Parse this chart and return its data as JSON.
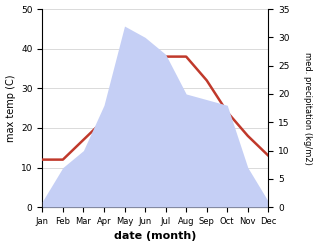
{
  "months": [
    "Jan",
    "Feb",
    "Mar",
    "Apr",
    "May",
    "Jun",
    "Jul",
    "Aug",
    "Sep",
    "Oct",
    "Nov",
    "Dec"
  ],
  "temperature": [
    12,
    12,
    17,
    22,
    28,
    34,
    38,
    38,
    32,
    24,
    18,
    13
  ],
  "precipitation": [
    1,
    7,
    10,
    18,
    32,
    30,
    27,
    20,
    19,
    18,
    7,
    1
  ],
  "temp_ylim": [
    0,
    50
  ],
  "precip_ylim": [
    0,
    35
  ],
  "temp_yticks": [
    0,
    10,
    20,
    30,
    40,
    50
  ],
  "precip_yticks": [
    0,
    5,
    10,
    15,
    20,
    25,
    30,
    35
  ],
  "temp_color": "#c0392b",
  "precip_fill_color": "#c5cff5",
  "precip_line_color": "#aab8e8",
  "xlabel": "date (month)",
  "ylabel_left": "max temp (C)",
  "ylabel_right": "med. precipitation (kg/m2)",
  "background_color": "#ffffff",
  "grid_color": "#cccccc"
}
